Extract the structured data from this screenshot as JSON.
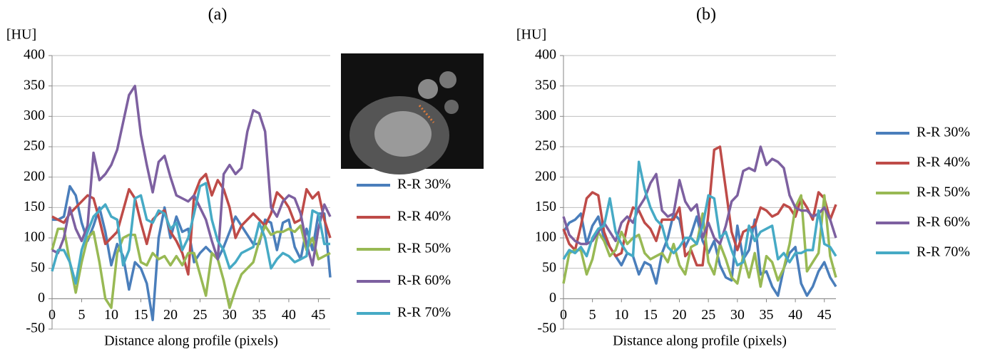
{
  "chart_data": [
    {
      "type": "line",
      "title": "(a)",
      "y_label": "[HU]",
      "x_label": "Distance along profile (pixels)",
      "x": [
        0,
        1,
        2,
        3,
        4,
        5,
        6,
        7,
        8,
        9,
        10,
        11,
        12,
        13,
        14,
        15,
        16,
        17,
        18,
        19,
        20,
        21,
        22,
        23,
        24,
        25,
        26,
        27,
        28,
        29,
        30,
        31,
        32,
        33,
        34,
        35,
        36,
        37,
        38,
        39,
        40,
        41,
        42,
        43,
        44,
        45,
        46,
        47
      ],
      "xlim": [
        0,
        47
      ],
      "xticks": [
        0,
        5,
        10,
        15,
        20,
        25,
        30,
        35,
        40,
        45
      ],
      "ylim": [
        -50,
        400
      ],
      "yticks": [
        -50,
        0,
        50,
        100,
        150,
        200,
        250,
        300,
        350,
        400
      ],
      "grid": true,
      "legend": "right",
      "series": [
        {
          "name": "R-R 30%",
          "color": "#4a7ebb",
          "values": [
            130,
            130,
            135,
            185,
            170,
            125,
            95,
            120,
            150,
            110,
            55,
            90,
            70,
            15,
            60,
            50,
            25,
            -35,
            100,
            150,
            100,
            135,
            110,
            115,
            60,
            75,
            85,
            75,
            65,
            85,
            110,
            135,
            120,
            105,
            90,
            90,
            130,
            125,
            80,
            125,
            130,
            85,
            65,
            115,
            80,
            140,
            140,
            35
          ]
        },
        {
          "name": "R-R 40%",
          "color": "#be4b48",
          "values": [
            135,
            130,
            125,
            140,
            150,
            160,
            170,
            165,
            130,
            90,
            100,
            110,
            145,
            180,
            165,
            125,
            90,
            130,
            140,
            145,
            110,
            95,
            75,
            40,
            170,
            195,
            205,
            170,
            195,
            180,
            150,
            100,
            120,
            130,
            140,
            130,
            120,
            140,
            175,
            165,
            150,
            125,
            130,
            180,
            165,
            175,
            130,
            100
          ]
        },
        {
          "name": "R-R 50%",
          "color": "#98b954",
          "values": [
            80,
            115,
            115,
            60,
            10,
            60,
            100,
            110,
            60,
            0,
            -15,
            75,
            100,
            105,
            105,
            60,
            55,
            75,
            65,
            70,
            55,
            70,
            55,
            75,
            75,
            40,
            5,
            75,
            65,
            30,
            -15,
            15,
            40,
            50,
            60,
            95,
            120,
            105,
            110,
            110,
            115,
            110,
            120,
            80,
            100,
            65,
            70,
            75
          ]
        },
        {
          "name": "R-R 60%",
          "color": "#7d60a0",
          "values": [
            80,
            75,
            100,
            150,
            115,
            95,
            120,
            240,
            195,
            205,
            220,
            245,
            290,
            335,
            350,
            270,
            220,
            175,
            225,
            235,
            200,
            170,
            165,
            160,
            170,
            150,
            130,
            95,
            65,
            205,
            220,
            205,
            215,
            275,
            310,
            305,
            275,
            150,
            135,
            160,
            170,
            165,
            140,
            90,
            55,
            115,
            155,
            135
          ]
        },
        {
          "name": "R-R 70%",
          "color": "#46aac5",
          "values": [
            45,
            80,
            80,
            60,
            25,
            80,
            110,
            135,
            145,
            155,
            135,
            130,
            55,
            80,
            165,
            170,
            130,
            125,
            145,
            140,
            115,
            125,
            80,
            100,
            140,
            185,
            190,
            130,
            95,
            80,
            50,
            60,
            75,
            80,
            85,
            125,
            100,
            50,
            65,
            75,
            70,
            60,
            65,
            70,
            145,
            140,
            90,
            90
          ]
        }
      ]
    },
    {
      "type": "line",
      "title": "(b)",
      "y_label": "[HU]",
      "x_label": "Distance along profile (pixels)",
      "x": [
        0,
        1,
        2,
        3,
        4,
        5,
        6,
        7,
        8,
        9,
        10,
        11,
        12,
        13,
        14,
        15,
        16,
        17,
        18,
        19,
        20,
        21,
        22,
        23,
        24,
        25,
        26,
        27,
        28,
        29,
        30,
        31,
        32,
        33,
        34,
        35,
        36,
        37,
        38,
        39,
        40,
        41,
        42,
        43,
        44,
        45,
        46,
        47
      ],
      "xlim": [
        0,
        47
      ],
      "xticks": [
        0,
        5,
        10,
        15,
        20,
        25,
        30,
        35,
        40,
        45
      ],
      "ylim": [
        -50,
        400
      ],
      "yticks": [
        -50,
        0,
        50,
        100,
        150,
        200,
        250,
        300,
        350,
        400
      ],
      "grid": true,
      "legend": "right",
      "series": [
        {
          "name": "R-R 30%",
          "color": "#4a7ebb",
          "values": [
            110,
            125,
            130,
            140,
            90,
            120,
            135,
            100,
            85,
            70,
            55,
            75,
            70,
            40,
            60,
            55,
            25,
            75,
            100,
            140,
            130,
            85,
            105,
            135,
            95,
            75,
            95,
            55,
            35,
            30,
            120,
            65,
            80,
            130,
            40,
            45,
            20,
            5,
            50,
            75,
            85,
            25,
            5,
            20,
            45,
            60,
            35,
            20
          ]
        },
        {
          "name": "R-R 40%",
          "color": "#be4b48",
          "values": [
            115,
            90,
            80,
            120,
            165,
            175,
            170,
            110,
            85,
            70,
            75,
            120,
            150,
            145,
            125,
            115,
            95,
            130,
            130,
            130,
            150,
            70,
            80,
            55,
            55,
            140,
            245,
            250,
            180,
            110,
            80,
            110,
            115,
            120,
            150,
            145,
            135,
            140,
            155,
            150,
            135,
            165,
            150,
            130,
            175,
            165,
            130,
            155
          ]
        },
        {
          "name": "R-R 50%",
          "color": "#98b954",
          "values": [
            25,
            75,
            80,
            80,
            40,
            65,
            110,
            95,
            70,
            80,
            110,
            90,
            100,
            105,
            75,
            65,
            70,
            75,
            60,
            90,
            55,
            40,
            85,
            90,
            140,
            60,
            40,
            90,
            65,
            35,
            25,
            70,
            35,
            75,
            20,
            70,
            60,
            30,
            50,
            90,
            150,
            170,
            45,
            60,
            75,
            170,
            70,
            35
          ]
        },
        {
          "name": "R-R 60%",
          "color": "#7d60a0",
          "values": [
            135,
            105,
            95,
            90,
            90,
            95,
            110,
            125,
            110,
            95,
            125,
            135,
            125,
            150,
            165,
            190,
            205,
            145,
            135,
            140,
            195,
            160,
            145,
            155,
            100,
            125,
            100,
            90,
            120,
            160,
            170,
            210,
            215,
            210,
            250,
            220,
            230,
            225,
            215,
            170,
            150,
            145,
            145,
            135,
            140,
            150,
            130,
            100
          ]
        },
        {
          "name": "R-R 70%",
          "color": "#46aac5",
          "values": [
            65,
            80,
            75,
            85,
            70,
            100,
            115,
            120,
            165,
            110,
            90,
            75,
            70,
            225,
            180,
            150,
            130,
            120,
            85,
            75,
            85,
            100,
            100,
            90,
            120,
            170,
            165,
            100,
            110,
            80,
            55,
            60,
            120,
            95,
            110,
            115,
            120,
            65,
            75,
            60,
            75,
            75,
            80,
            80,
            145,
            90,
            85,
            70
          ]
        }
      ]
    }
  ]
}
